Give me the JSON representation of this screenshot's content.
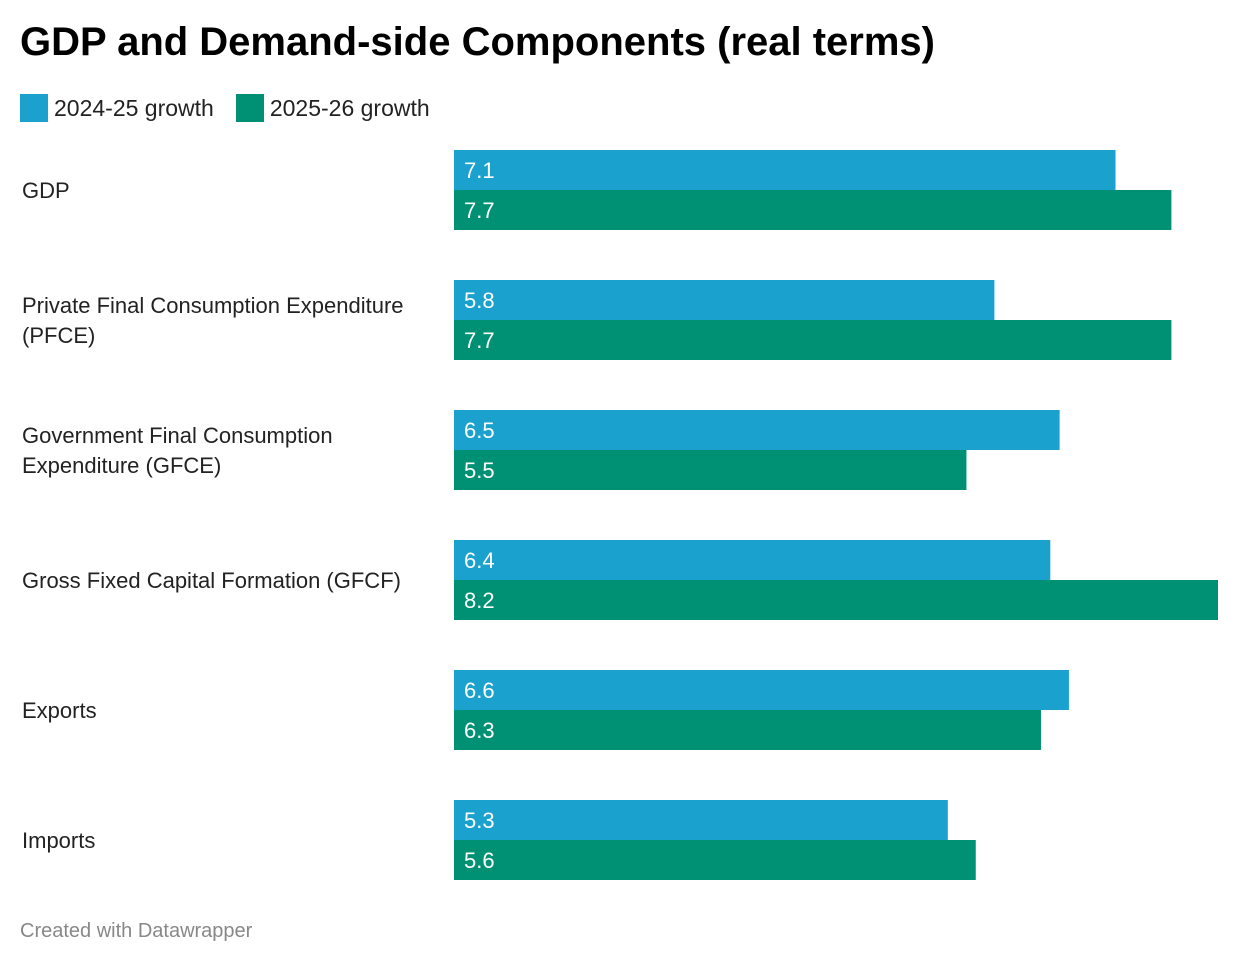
{
  "title": "GDP and Demand-side Components (real terms)",
  "credit": "Created with Datawrapper",
  "colors": {
    "series_2024_25": "#1aa1ce",
    "series_2025_26": "#009174"
  },
  "chart_data": {
    "type": "bar",
    "orientation": "horizontal",
    "title": "GDP and Demand-side Components (real terms)",
    "categories": [
      [
        "GDP"
      ],
      [
        "Private Final Consumption Expenditure",
        "(PFCE)"
      ],
      [
        "Government Final Consumption",
        "Expenditure (GFCE)"
      ],
      [
        "Gross Fixed Capital Formation (GFCF)"
      ],
      [
        "Exports"
      ],
      [
        "Imports"
      ]
    ],
    "series": [
      {
        "name": "2024-25 growth",
        "values": [
          7.1,
          5.8,
          6.5,
          6.4,
          6.6,
          5.3
        ]
      },
      {
        "name": "2025-26 growth",
        "values": [
          7.7,
          7.7,
          5.5,
          8.2,
          6.3,
          5.6
        ]
      }
    ],
    "xlim": [
      0,
      8.2
    ],
    "grid": false,
    "legend": "top-left"
  }
}
